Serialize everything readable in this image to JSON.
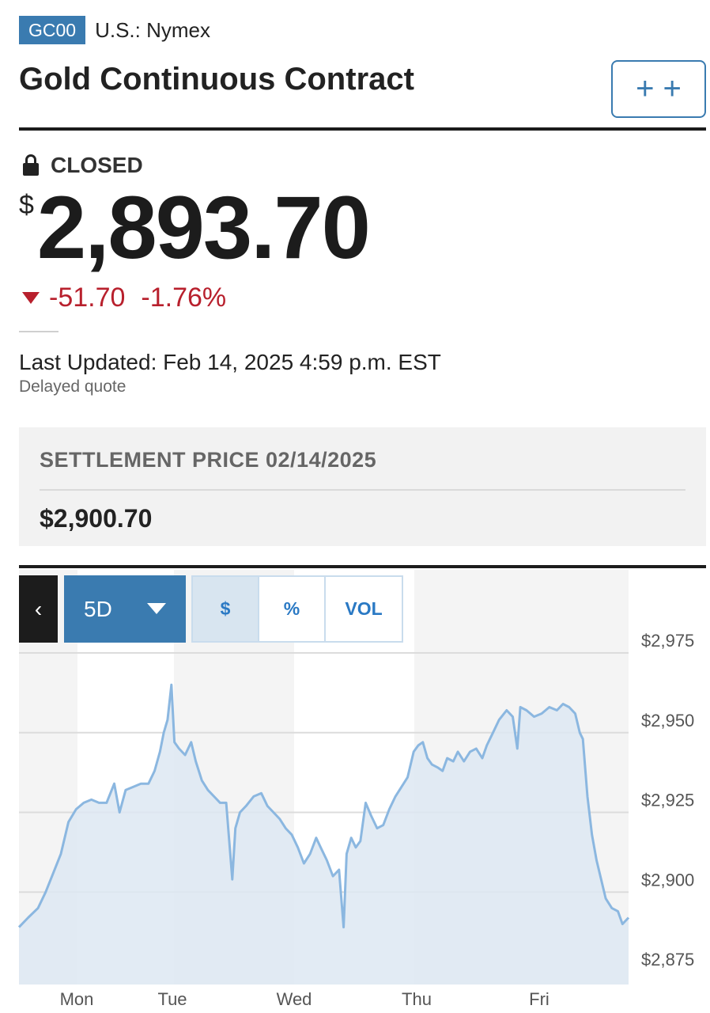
{
  "header": {
    "symbol": "GC00",
    "exchange": "U.S.: Nymex",
    "title": "Gold Continuous Contract",
    "watch_label": "+ +"
  },
  "quote": {
    "status": "CLOSED",
    "currency": "$",
    "price": "2,893.70",
    "change": "-51.70",
    "change_pct": "-1.76%",
    "last_updated": "Last Updated: Feb 14, 2025 4:59 p.m. EST",
    "delay_note": "Delayed quote"
  },
  "settlement": {
    "label": "SETTLEMENT PRICE 02/14/2025",
    "value": "$2,900.70"
  },
  "chart_controls": {
    "back": "‹",
    "range": "5D",
    "modes": [
      "$",
      "%",
      "VOL"
    ],
    "active_mode": "$"
  },
  "colors": {
    "brand": "#3a7bb0",
    "down": "#b8202d",
    "line": "#8bb7e0",
    "fill": "#dde8f2"
  },
  "chart_data": {
    "type": "area",
    "x_ticks": [
      "Mon",
      "Tue",
      "Wed",
      "Thu",
      "Fri"
    ],
    "y_ticks": [
      "$2,975",
      "$2,950",
      "$2,925",
      "$2,900",
      "$2,875"
    ],
    "ylim": [
      2875,
      2975
    ],
    "grid": true,
    "series": [
      {
        "points": [
          [
            0.0,
            2889
          ],
          [
            0.12,
            2892
          ],
          [
            0.25,
            2895
          ],
          [
            0.35,
            2900
          ],
          [
            0.45,
            2906
          ],
          [
            0.55,
            2912
          ],
          [
            0.65,
            2922
          ],
          [
            0.75,
            2926
          ],
          [
            0.85,
            2928
          ],
          [
            0.95,
            2929
          ],
          [
            1.05,
            2928
          ],
          [
            1.15,
            2928
          ],
          [
            1.25,
            2934
          ],
          [
            1.32,
            2925
          ],
          [
            1.4,
            2932
          ],
          [
            1.5,
            2933
          ],
          [
            1.6,
            2934
          ],
          [
            1.7,
            2934
          ],
          [
            1.78,
            2938
          ],
          [
            1.85,
            2944
          ],
          [
            1.9,
            2950
          ],
          [
            1.95,
            2954
          ],
          [
            2.0,
            2965
          ],
          [
            2.04,
            2947
          ],
          [
            2.1,
            2945
          ],
          [
            2.18,
            2943
          ],
          [
            2.26,
            2947
          ],
          [
            2.32,
            2941
          ],
          [
            2.4,
            2935
          ],
          [
            2.48,
            2932
          ],
          [
            2.56,
            2930
          ],
          [
            2.64,
            2928
          ],
          [
            2.72,
            2928
          ],
          [
            2.8,
            2904
          ],
          [
            2.84,
            2920
          ],
          [
            2.9,
            2925
          ],
          [
            2.98,
            2927
          ],
          [
            3.08,
            2930
          ],
          [
            3.18,
            2931
          ],
          [
            3.26,
            2927
          ],
          [
            3.34,
            2925
          ],
          [
            3.42,
            2923
          ],
          [
            3.5,
            2920
          ],
          [
            3.58,
            2918
          ],
          [
            3.66,
            2914
          ],
          [
            3.74,
            2909
          ],
          [
            3.82,
            2912
          ],
          [
            3.9,
            2917
          ],
          [
            3.96,
            2914
          ],
          [
            4.04,
            2910
          ],
          [
            4.12,
            2905
          ],
          [
            4.2,
            2907
          ],
          [
            4.26,
            2889
          ],
          [
            4.3,
            2912
          ],
          [
            4.36,
            2917
          ],
          [
            4.42,
            2914
          ],
          [
            4.48,
            2916
          ],
          [
            4.55,
            2928
          ],
          [
            4.62,
            2924
          ],
          [
            4.7,
            2920
          ],
          [
            4.78,
            2921
          ],
          [
            4.86,
            2926
          ],
          [
            4.94,
            2930
          ],
          [
            5.02,
            2933
          ],
          [
            5.1,
            2936
          ],
          [
            5.18,
            2944
          ],
          [
            5.24,
            2946
          ],
          [
            5.3,
            2947
          ],
          [
            5.36,
            2942
          ],
          [
            5.42,
            2940
          ],
          [
            5.5,
            2939
          ],
          [
            5.56,
            2938
          ],
          [
            5.62,
            2942
          ],
          [
            5.7,
            2941
          ],
          [
            5.76,
            2944
          ],
          [
            5.84,
            2941
          ],
          [
            5.92,
            2944
          ],
          [
            6.0,
            2945
          ],
          [
            6.08,
            2942
          ],
          [
            6.14,
            2946
          ],
          [
            6.22,
            2950
          ],
          [
            6.3,
            2954
          ],
          [
            6.4,
            2957
          ],
          [
            6.48,
            2955
          ],
          [
            6.54,
            2945
          ],
          [
            6.58,
            2958
          ],
          [
            6.66,
            2957
          ],
          [
            6.76,
            2955
          ],
          [
            6.86,
            2956
          ],
          [
            6.96,
            2958
          ],
          [
            7.06,
            2957
          ],
          [
            7.14,
            2959
          ],
          [
            7.22,
            2958
          ],
          [
            7.3,
            2956
          ],
          [
            7.36,
            2950
          ],
          [
            7.4,
            2948
          ],
          [
            7.46,
            2930
          ],
          [
            7.52,
            2918
          ],
          [
            7.58,
            2910
          ],
          [
            7.64,
            2904
          ],
          [
            7.7,
            2898
          ],
          [
            7.78,
            2895
          ],
          [
            7.86,
            2894
          ],
          [
            7.92,
            2890
          ],
          [
            8.0,
            2892
          ]
        ]
      }
    ]
  }
}
